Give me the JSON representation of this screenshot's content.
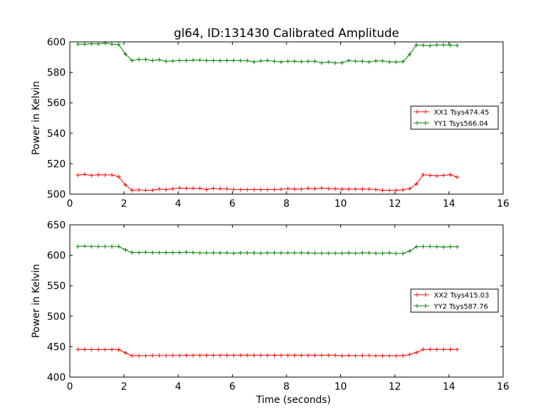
{
  "figure_title": "gl64, ID:131430 Calibrated Amplitude",
  "chart_data": [
    {
      "type": "line",
      "title": "gl64, ID:131430 Calibrated Amplitude",
      "xlabel": "",
      "ylabel": "Power in Kelvin",
      "xlim": [
        0,
        16
      ],
      "ylim": [
        500,
        600
      ],
      "xticks": [
        0,
        2,
        4,
        6,
        8,
        10,
        12,
        14,
        16
      ],
      "yticks": [
        500,
        520,
        540,
        560,
        580,
        600
      ],
      "legend_position": "center-right",
      "x": [
        0.3,
        0.55,
        0.8,
        1.05,
        1.3,
        1.55,
        1.8,
        2.05,
        2.3,
        2.55,
        2.8,
        3.05,
        3.3,
        3.55,
        3.8,
        4.05,
        4.3,
        4.55,
        4.8,
        5.05,
        5.3,
        5.55,
        5.8,
        6.05,
        6.3,
        6.55,
        6.8,
        7.05,
        7.3,
        7.55,
        7.8,
        8.05,
        8.3,
        8.55,
        8.8,
        9.05,
        9.3,
        9.55,
        9.8,
        10.05,
        10.3,
        10.55,
        10.8,
        11.05,
        11.3,
        11.55,
        11.8,
        12.05,
        12.3,
        12.55,
        12.8,
        13.05,
        13.3,
        13.55,
        13.8,
        14.05,
        14.3
      ],
      "series": [
        {
          "name": "XX1 Tsys474.45",
          "color": "#ff0000",
          "values": [
            512.5,
            513,
            512.3,
            512.7,
            512.6,
            512.6,
            511.5,
            506,
            502.5,
            502.8,
            502.5,
            502.6,
            503.4,
            503.0,
            503.5,
            504.0,
            503.8,
            503.8,
            503.8,
            503.0,
            503.8,
            503.5,
            503.5,
            503.0,
            503.0,
            503.0,
            503.0,
            503.0,
            503.0,
            503.0,
            503.2,
            503.6,
            503.3,
            503.3,
            503.8,
            503.5,
            504.0,
            503.6,
            503.5,
            503.3,
            503.3,
            503.3,
            503.3,
            503.3,
            503.0,
            502.5,
            502.5,
            502.6,
            502.8,
            503.6,
            506.7,
            512.8,
            512.3,
            512.0,
            512.3,
            512.8,
            511.2
          ]
        },
        {
          "name": "YY1 Tsys566.04",
          "color": "#008000",
          "values": [
            598.5,
            598.5,
            598.8,
            598.7,
            599.2,
            598.5,
            598.3,
            592,
            587.8,
            588.5,
            588.5,
            587.8,
            588.3,
            587.3,
            587.5,
            587.8,
            587.8,
            588.0,
            588.1,
            587.8,
            587.8,
            587.7,
            587.8,
            587.8,
            587.7,
            587.7,
            586.8,
            587.5,
            587.8,
            587.3,
            586.8,
            587.3,
            587.3,
            587.0,
            587.3,
            587.3,
            586.2,
            586.8,
            586.2,
            586.3,
            587.8,
            587.3,
            587.3,
            586.8,
            587.5,
            587.5,
            586.8,
            586.8,
            587.0,
            591.8,
            598.0,
            597.8,
            597.5,
            598.0,
            598.0,
            597.8,
            597.7
          ]
        }
      ]
    },
    {
      "type": "line",
      "title": "",
      "xlabel": "Time (seconds)",
      "ylabel": "Power in Kelvin",
      "xlim": [
        0,
        16
      ],
      "ylim": [
        400,
        650
      ],
      "xticks": [
        0,
        2,
        4,
        6,
        8,
        10,
        12,
        14,
        16
      ],
      "yticks": [
        400,
        450,
        500,
        550,
        600,
        650
      ],
      "legend_position": "center-right",
      "x": [
        0.3,
        0.55,
        0.8,
        1.05,
        1.3,
        1.55,
        1.8,
        2.05,
        2.3,
        2.55,
        2.8,
        3.05,
        3.3,
        3.55,
        3.8,
        4.05,
        4.3,
        4.55,
        4.8,
        5.05,
        5.3,
        5.55,
        5.8,
        6.05,
        6.3,
        6.55,
        6.8,
        7.05,
        7.3,
        7.55,
        7.8,
        8.05,
        8.3,
        8.55,
        8.8,
        9.05,
        9.3,
        9.55,
        9.8,
        10.05,
        10.3,
        10.55,
        10.8,
        11.05,
        11.3,
        11.55,
        11.8,
        12.05,
        12.3,
        12.55,
        12.8,
        13.05,
        13.3,
        13.55,
        13.8,
        14.05,
        14.3
      ],
      "series": [
        {
          "name": "XX2 Tsys415.03",
          "color": "#ff0000",
          "values": [
            445.5,
            445.5,
            445.3,
            445.3,
            445.3,
            445.5,
            445.0,
            440.0,
            435.0,
            435.0,
            435.0,
            435.5,
            435.5,
            435.5,
            435.5,
            435.5,
            435.8,
            435.8,
            435.8,
            435.8,
            435.8,
            435.8,
            435.8,
            435.8,
            435.8,
            435.8,
            435.8,
            435.8,
            435.8,
            435.8,
            435.8,
            435.8,
            435.8,
            435.8,
            435.8,
            435.8,
            435.8,
            435.8,
            435.8,
            435.0,
            435.5,
            435.0,
            435.5,
            435.5,
            435.0,
            435.0,
            435.0,
            435.0,
            435.3,
            437.0,
            440.5,
            445.5,
            445.5,
            445.5,
            445.5,
            445.5,
            445.5
          ]
        },
        {
          "name": "YY2 Tsys587.76",
          "color": "#008000",
          "values": [
            614.5,
            615.0,
            614.5,
            614.5,
            614.5,
            614.5,
            614.5,
            609.0,
            604.5,
            604.5,
            605.0,
            604.5,
            604.5,
            604.5,
            604.5,
            604.5,
            605.0,
            604.5,
            604.0,
            604.0,
            604.0,
            604.0,
            604.0,
            603.5,
            604.0,
            604.0,
            604.0,
            603.5,
            604.0,
            604.0,
            604.0,
            604.0,
            604.0,
            604.0,
            603.8,
            603.5,
            603.5,
            603.5,
            603.5,
            603.5,
            604.0,
            603.5,
            604.0,
            604.0,
            603.5,
            603.5,
            604.0,
            603.0,
            603.0,
            607.0,
            614.0,
            614.5,
            614.5,
            614.0,
            613.5,
            614.0,
            614.0
          ]
        }
      ]
    }
  ]
}
